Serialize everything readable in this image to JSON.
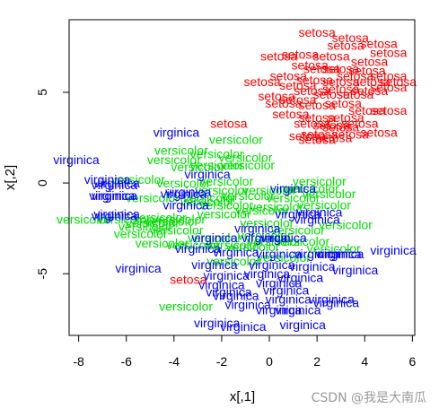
{
  "chart_data": {
    "type": "scatter",
    "title": "",
    "xlabel": "x[,1]",
    "ylabel": "x[,2]",
    "xlim": [
      -8.4,
      6.1
    ],
    "ylim": [
      -8.4,
      9.0
    ],
    "xticks": [
      -8,
      -6,
      -4,
      -2,
      0,
      2,
      4,
      6
    ],
    "yticks": [
      -5,
      0,
      5
    ],
    "grid": false,
    "legend": "none",
    "series": [
      {
        "name": "setosa",
        "color": "#ff0000",
        "points": [
          [
            2.0,
            8.3
          ],
          [
            3.4,
            8.0
          ],
          [
            4.6,
            7.7
          ],
          [
            1.3,
            7.1
          ],
          [
            3.2,
            7.6
          ],
          [
            5.0,
            7.2
          ],
          [
            0.4,
            7.0
          ],
          [
            2.6,
            7.0
          ],
          [
            4.2,
            6.7
          ],
          [
            1.7,
            6.5
          ],
          [
            2.2,
            6.3
          ],
          [
            3.0,
            6.3
          ],
          [
            4.1,
            6.2
          ],
          [
            5.0,
            5.9
          ],
          [
            3.6,
            5.9
          ],
          [
            0.8,
            5.9
          ],
          [
            1.9,
            5.7
          ],
          [
            3.0,
            5.6
          ],
          [
            4.3,
            5.6
          ],
          [
            5.4,
            5.6
          ],
          [
            -0.3,
            5.6
          ],
          [
            1.2,
            5.4
          ],
          [
            1.8,
            5.1
          ],
          [
            3.0,
            5.2
          ],
          [
            4.2,
            5.1
          ],
          [
            5.0,
            5.3
          ],
          [
            2.6,
            4.9
          ],
          [
            0.3,
            4.8
          ],
          [
            3.6,
            4.9
          ],
          [
            1.2,
            4.6
          ],
          [
            0.6,
            4.4
          ],
          [
            2.0,
            4.3
          ],
          [
            3.1,
            4.4
          ],
          [
            4.1,
            4.0
          ],
          [
            5.0,
            4.0
          ],
          [
            0.9,
            3.8
          ],
          [
            2.0,
            3.6
          ],
          [
            3.2,
            3.6
          ],
          [
            1.8,
            3.3
          ],
          [
            2.6,
            3.2
          ],
          [
            3.8,
            3.3
          ],
          [
            2.1,
            2.7
          ],
          [
            3.4,
            2.7
          ],
          [
            4.6,
            2.8
          ],
          [
            2.0,
            2.4
          ],
          [
            2.7,
            2.5
          ],
          [
            -1.7,
            3.3
          ],
          [
            -3.4,
            -5.3
          ],
          [
            1.6,
            2.6
          ],
          [
            3.0,
            3.1
          ]
        ]
      },
      {
        "name": "versicolor",
        "color": "#00dd00",
        "points": [
          [
            -1.4,
            2.4
          ],
          [
            -3.7,
            1.8
          ],
          [
            -2.2,
            1.6
          ],
          [
            -1.0,
            1.4
          ],
          [
            -4.0,
            1.3
          ],
          [
            -2.2,
            1.0
          ],
          [
            -0.9,
            1.0
          ],
          [
            -5.5,
            0.2
          ],
          [
            -3.6,
            0.0
          ],
          [
            -1.8,
            0.1
          ],
          [
            2.1,
            0.1
          ],
          [
            -4.9,
            -0.8
          ],
          [
            -2.0,
            -0.4
          ],
          [
            0.0,
            -0.4
          ],
          [
            2.5,
            -0.6
          ],
          [
            -2.5,
            -0.8
          ],
          [
            -0.9,
            -0.7
          ],
          [
            1.0,
            -0.8
          ],
          [
            -1.8,
            -1.2
          ],
          [
            0.3,
            -1.3
          ],
          [
            2.3,
            -1.2
          ],
          [
            -7.8,
            -2.0
          ],
          [
            -3.8,
            -2.0
          ],
          [
            -1.9,
            -1.7
          ],
          [
            -6.1,
            -2.0
          ],
          [
            -4.6,
            -1.9
          ],
          [
            -4.9,
            -2.2
          ],
          [
            -0.1,
            -2.2
          ],
          [
            3.2,
            -2.3
          ],
          [
            -3.9,
            -2.6
          ],
          [
            -5.4,
            -2.8
          ],
          [
            -2.3,
            -3.0
          ],
          [
            -4.5,
            -3.3
          ],
          [
            -3.2,
            -3.4
          ],
          [
            -1.5,
            -3.4
          ],
          [
            0.2,
            -3.2
          ],
          [
            1.4,
            -3.2
          ],
          [
            -0.7,
            -3.5
          ],
          [
            2.7,
            -3.6
          ],
          [
            -1.5,
            -4.3
          ],
          [
            0.6,
            -4.1
          ],
          [
            -3.5,
            -6.8
          ],
          [
            -0.3,
            -1.5
          ],
          [
            1.2,
            -2.6
          ],
          [
            -2.6,
            -1.0
          ],
          [
            -5.2,
            -2.4
          ],
          [
            -0.2,
            -2.9
          ],
          [
            -3.0,
            0.9
          ],
          [
            1.8,
            -0.3
          ],
          [
            -4.1,
            -2.1
          ]
        ]
      },
      {
        "name": "virginica",
        "color": "#0000ff",
        "points": [
          [
            -3.9,
            2.8
          ],
          [
            -8.1,
            1.3
          ],
          [
            -6.8,
            0.2
          ],
          [
            -6.4,
            0.0
          ],
          [
            -6.5,
            -0.1
          ],
          [
            -6.5,
            -0.7
          ],
          [
            -6.6,
            -0.7
          ],
          [
            -2.6,
            0.5
          ],
          [
            -3.4,
            -0.5
          ],
          [
            1.0,
            -0.3
          ],
          [
            -3.6,
            -0.6
          ],
          [
            -6.4,
            -1.7
          ],
          [
            -6.5,
            -1.8
          ],
          [
            1.2,
            -1.7
          ],
          [
            2.0,
            -2.0
          ],
          [
            2.1,
            -1.6
          ],
          [
            -2.3,
            -3.0
          ],
          [
            -0.2,
            -3.0
          ],
          [
            0.6,
            -3.0
          ],
          [
            -3.0,
            -3.6
          ],
          [
            -1.4,
            -3.8
          ],
          [
            0.4,
            -3.9
          ],
          [
            2.0,
            -3.9
          ],
          [
            3.0,
            -3.9
          ],
          [
            5.2,
            -3.7
          ],
          [
            -2.3,
            -4.5
          ],
          [
            0.1,
            -4.5
          ],
          [
            1.8,
            -4.6
          ],
          [
            3.6,
            -4.8
          ],
          [
            -5.5,
            -4.7
          ],
          [
            -1.8,
            -5.1
          ],
          [
            -0.1,
            -5.0
          ],
          [
            1.3,
            -5.2
          ],
          [
            0.4,
            -5.5
          ],
          [
            0.7,
            -5.9
          ],
          [
            -2.0,
            -5.6
          ],
          [
            -1.7,
            -6.0
          ],
          [
            -1.4,
            -6.2
          ],
          [
            0.8,
            -6.4
          ],
          [
            2.6,
            -6.4
          ],
          [
            2.8,
            -6.6
          ],
          [
            -0.9,
            -6.7
          ],
          [
            0.4,
            -7.0
          ],
          [
            1.2,
            -7.0
          ],
          [
            -2.2,
            -7.7
          ],
          [
            -1.1,
            -7.9
          ],
          [
            1.4,
            -7.8
          ],
          [
            -3.5,
            -1.2
          ],
          [
            -0.5,
            -2.5
          ],
          [
            2.9,
            -3.9
          ]
        ]
      }
    ]
  },
  "watermark": "CSDN @我是大南瓜"
}
